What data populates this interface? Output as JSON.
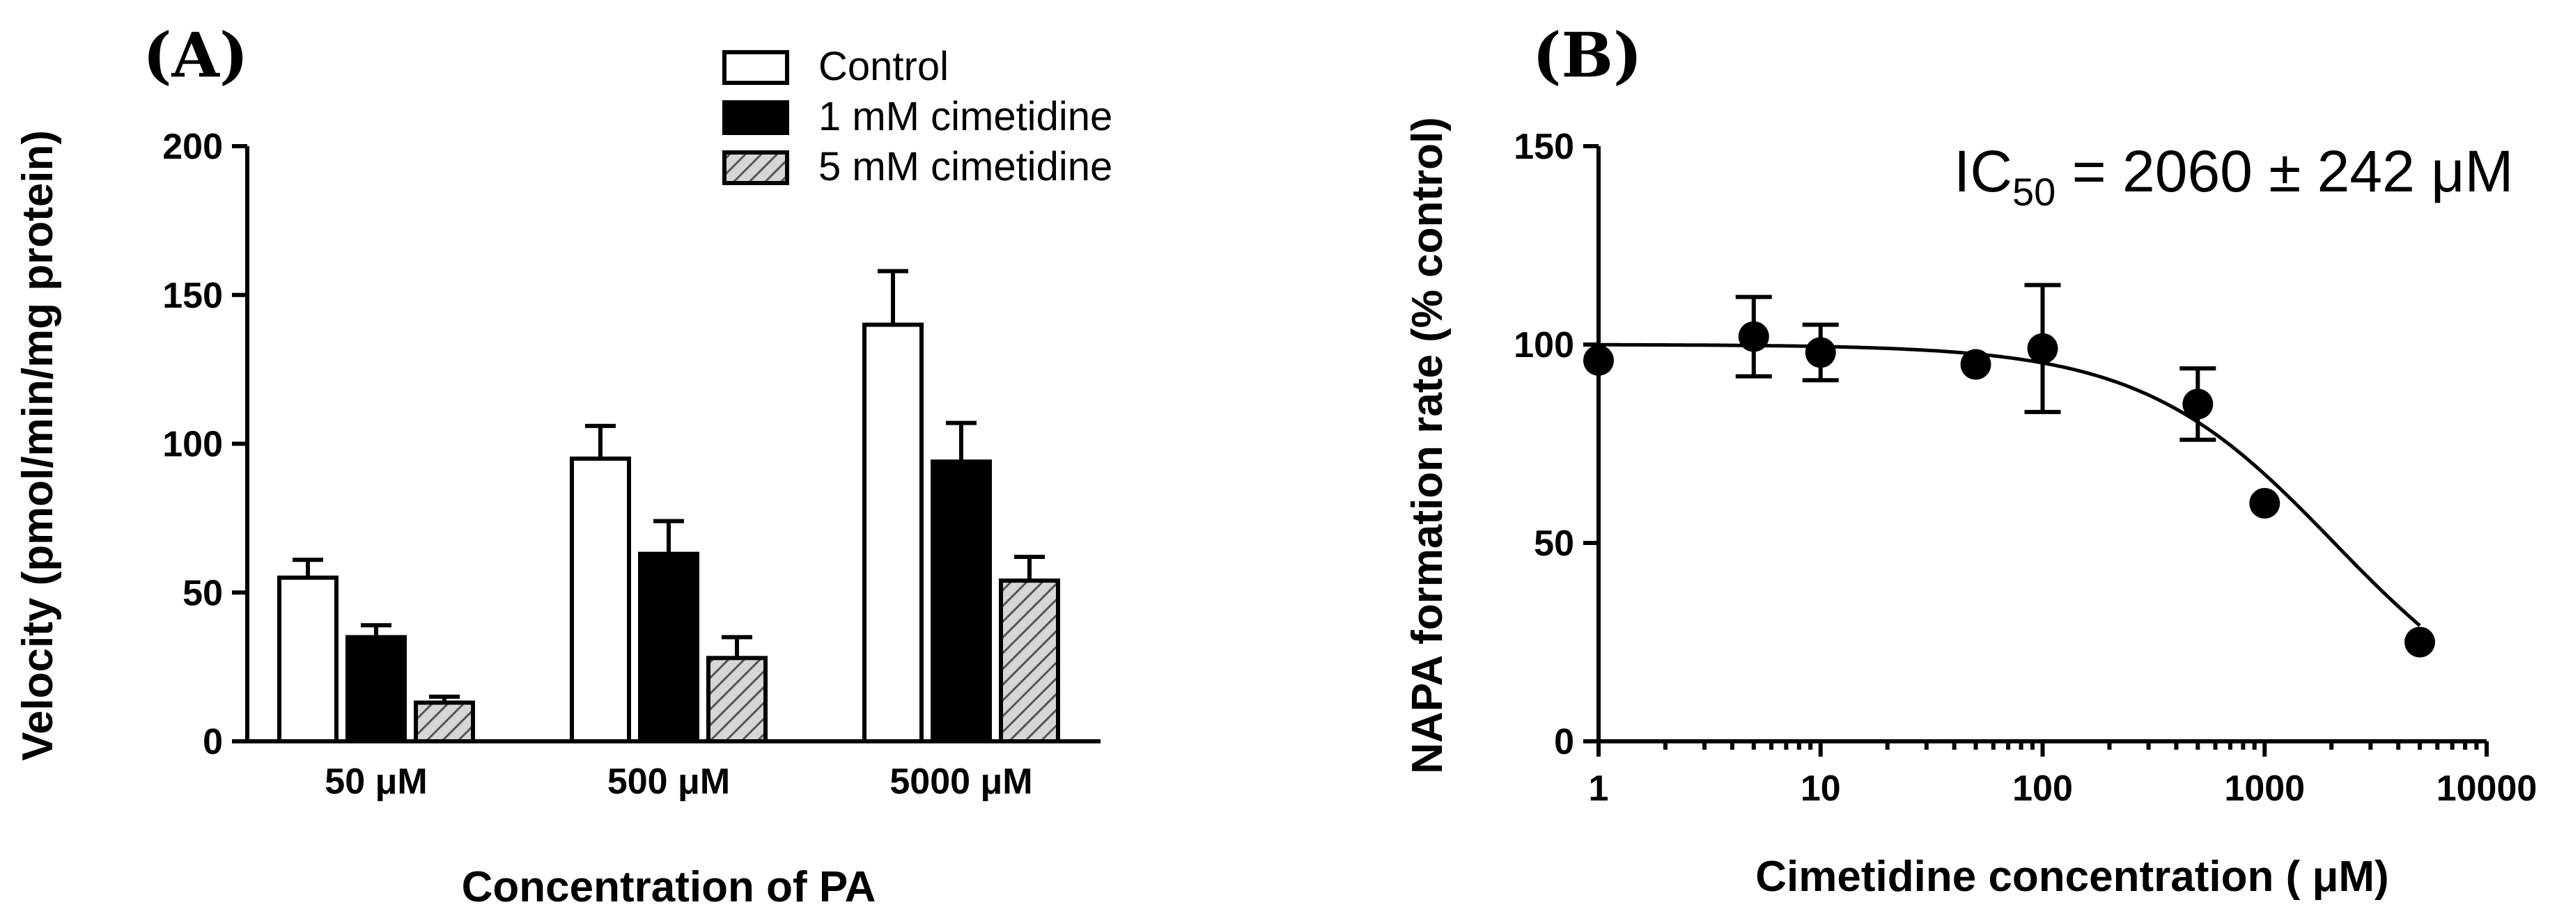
{
  "chart_data": [
    {
      "panel_label": "(A)",
      "type": "bar",
      "xlabel": "Concentration of PA",
      "ylabel": "Velocity (pmol/min/mg protein)",
      "ylim": [
        0,
        200
      ],
      "yticks": [
        0,
        50,
        100,
        150,
        200
      ],
      "categories": [
        "50 μM",
        "500 μM",
        "5000 μM"
      ],
      "series": [
        {
          "name": "Control",
          "fill": "#ffffff",
          "values": [
            55,
            95,
            140
          ],
          "errors": [
            6,
            11,
            18
          ]
        },
        {
          "name": "1 mM cimetidine",
          "fill": "#000000",
          "values": [
            35,
            63,
            94
          ],
          "errors": [
            4,
            11,
            13
          ]
        },
        {
          "name": "5 mM cimetidine",
          "fill": "hatch",
          "values": [
            13,
            28,
            54
          ],
          "errors": [
            2,
            7,
            8
          ]
        }
      ],
      "legend": "top-right"
    },
    {
      "panel_label": "(B)",
      "type": "scatter",
      "xlabel": "Cimetidine concentration ( μM)",
      "ylabel": "NAPA formation rate (% control)",
      "xscale": "log",
      "xlim": [
        1,
        10000
      ],
      "xticks": [
        1,
        10,
        100,
        1000,
        10000
      ],
      "xtick_labels": [
        "1",
        "10",
        "100",
        "1000",
        "10000"
      ],
      "ylim": [
        0,
        150
      ],
      "yticks": [
        0,
        50,
        100,
        150
      ],
      "points": [
        {
          "x": 1,
          "y": 96,
          "err": 0
        },
        {
          "x": 5,
          "y": 102,
          "err": 10
        },
        {
          "x": 10,
          "y": 98,
          "err": 7
        },
        {
          "x": 50,
          "y": 95,
          "err": 0
        },
        {
          "x": 100,
          "y": 99,
          "err": 16
        },
        {
          "x": 500,
          "y": 85,
          "err": 9
        },
        {
          "x": 1000,
          "y": 60,
          "err": 0
        },
        {
          "x": 5000,
          "y": 25,
          "err": 0
        }
      ],
      "fit": {
        "top": 100,
        "bottom": 0,
        "ic50": 2060,
        "hill": 1
      },
      "annotation": {
        "prefix": "IC",
        "subscript": "50",
        "suffix": " = 2060 ± 242 μM"
      }
    }
  ]
}
